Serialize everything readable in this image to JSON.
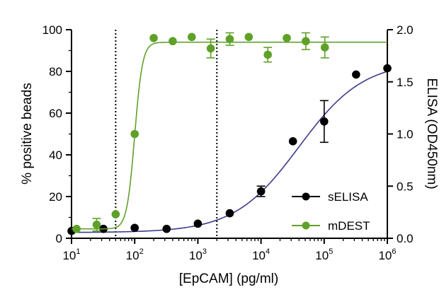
{
  "chart_data": {
    "type": "scatter",
    "title": "",
    "xlabel": "[EpCAM] (pg/ml)",
    "ylabel_left": "% positive beads",
    "ylabel_right": "ELISA (OD450nm)",
    "x_scale": "log10",
    "xlim": [
      10,
      1000000
    ],
    "ylim_left": [
      0,
      100
    ],
    "ylim_right": [
      0,
      2.0
    ],
    "x_ticks": [
      {
        "base": "10",
        "exp": "1",
        "value": 10
      },
      {
        "base": "10",
        "exp": "2",
        "value": 100
      },
      {
        "base": "10",
        "exp": "3",
        "value": 1000
      },
      {
        "base": "10",
        "exp": "4",
        "value": 10000
      },
      {
        "base": "10",
        "exp": "5",
        "value": 100000
      },
      {
        "base": "10",
        "exp": "6",
        "value": 1000000
      }
    ],
    "y_left_ticks": [
      "0",
      "20",
      "40",
      "60",
      "80",
      "100"
    ],
    "y_right_ticks": [
      "0.0",
      "0.5",
      "1.0",
      "1.5",
      "2.0"
    ],
    "vertical_lines_x": [
      50,
      2000
    ],
    "legend_position": "lower-right",
    "series": [
      {
        "name": "sELISA",
        "axis": "right",
        "color": "#000000",
        "curve_color": "#3d3a8c",
        "fit": {
          "bottom": 0.055,
          "top": 1.7,
          "ec50": 40000,
          "hill": 0.85
        },
        "points": [
          {
            "x": 10,
            "y": 0.07,
            "err": 0
          },
          {
            "x": 32,
            "y": 0.09,
            "err": 0
          },
          {
            "x": 100,
            "y": 0.1,
            "err": 0
          },
          {
            "x": 320,
            "y": 0.09,
            "err": 0
          },
          {
            "x": 1000,
            "y": 0.14,
            "err": 0
          },
          {
            "x": 3200,
            "y": 0.24,
            "err": 0
          },
          {
            "x": 10000,
            "y": 0.45,
            "err": 0.05
          },
          {
            "x": 32000,
            "y": 0.93,
            "err": 0
          },
          {
            "x": 100000,
            "y": 1.12,
            "err": 0.2
          },
          {
            "x": 320000,
            "y": 1.57,
            "err": 0
          },
          {
            "x": 1000000,
            "y": 1.63,
            "err": 0
          }
        ]
      },
      {
        "name": "mDEST",
        "axis": "left",
        "color": "#5fa128",
        "curve_color": "#5fa128",
        "fit": {
          "bottom": 4.5,
          "top": 94,
          "ec50": 100,
          "hill": 7
        },
        "points": [
          {
            "x": 12,
            "y": 4.5,
            "err": 0
          },
          {
            "x": 25,
            "y": 6.5,
            "err": 3.0
          },
          {
            "x": 50,
            "y": 11.5,
            "err": 0
          },
          {
            "x": 100,
            "y": 50,
            "err": 0
          },
          {
            "x": 200,
            "y": 96,
            "err": 0
          },
          {
            "x": 400,
            "y": 94.5,
            "err": 0
          },
          {
            "x": 800,
            "y": 96.5,
            "err": 0
          },
          {
            "x": 1600,
            "y": 91,
            "err": 4.5
          },
          {
            "x": 3200,
            "y": 95.5,
            "err": 3.0
          },
          {
            "x": 6400,
            "y": 96.5,
            "err": 0
          },
          {
            "x": 12800,
            "y": 88,
            "err": 3.5
          },
          {
            "x": 25600,
            "y": 96,
            "err": 0
          },
          {
            "x": 51200,
            "y": 94.5,
            "err": 4.0
          },
          {
            "x": 102400,
            "y": 91.5,
            "err": 5.0
          }
        ]
      }
    ]
  }
}
